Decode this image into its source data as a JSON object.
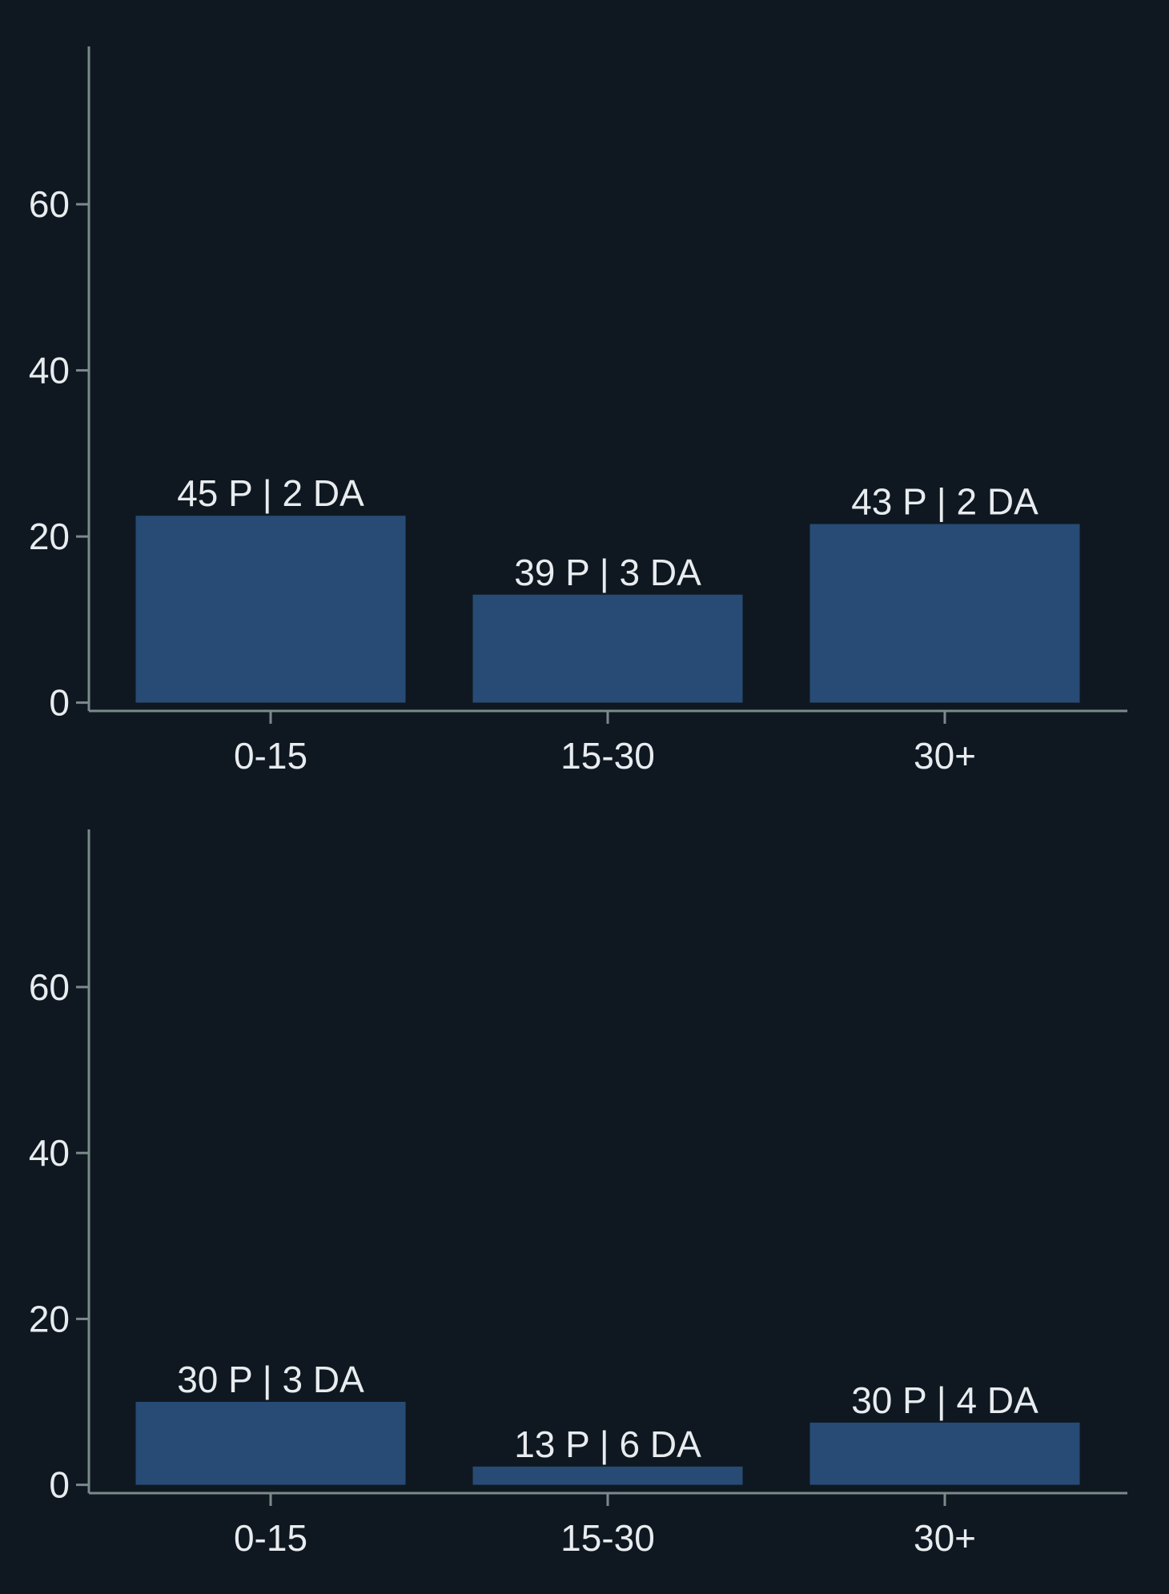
{
  "colors": {
    "background": "#0f1821",
    "bar": "#274b74",
    "axis": "#7b8a8b",
    "text": "#e8ecef"
  },
  "chart_data": [
    {
      "type": "bar",
      "categories": [
        "0-15",
        "15-30",
        "30+"
      ],
      "values": [
        22.5,
        13,
        21.5
      ],
      "data_labels": [
        "45 P | 2 DA",
        "39 P | 3 DA",
        "43 P | 2 DA"
      ],
      "yticks": [
        0,
        20,
        40,
        60
      ],
      "ylim": [
        -1,
        79
      ],
      "grid": false,
      "title": "",
      "xlabel": "",
      "ylabel": ""
    },
    {
      "type": "bar",
      "categories": [
        "0-15",
        "15-30",
        "30+"
      ],
      "values": [
        10,
        2.2,
        7.5
      ],
      "data_labels": [
        "30 P | 3 DA",
        "13 P | 6 DA",
        "30 P | 4 DA"
      ],
      "yticks": [
        0,
        20,
        40,
        60
      ],
      "ylim": [
        -1,
        79
      ],
      "grid": false,
      "title": "",
      "xlabel": "",
      "ylabel": ""
    }
  ]
}
